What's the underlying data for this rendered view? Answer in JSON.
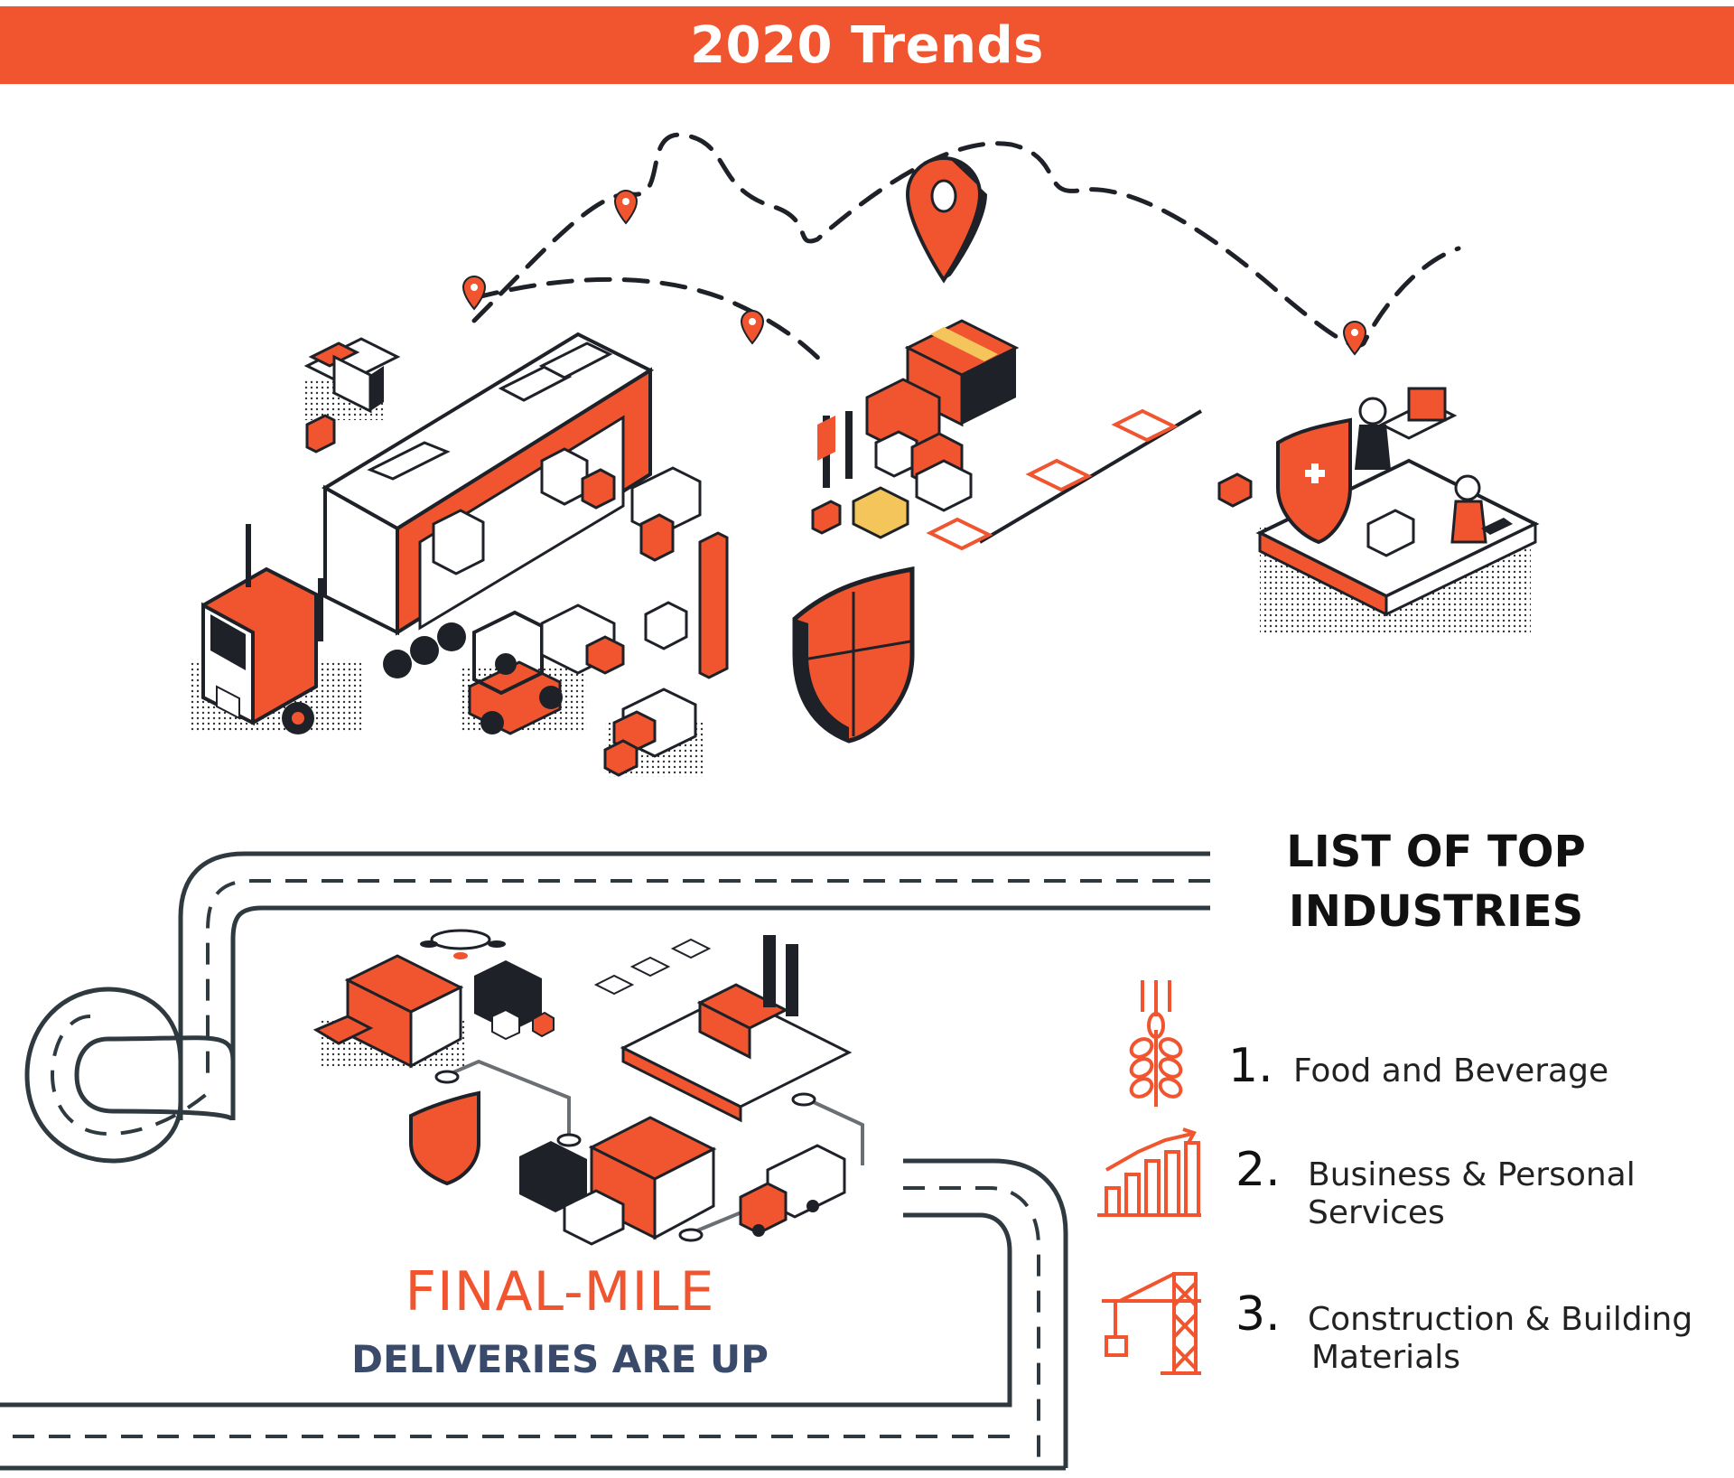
{
  "colors": {
    "accent": "#F0552F",
    "dark": "#1E2228",
    "road": "#2F3A40",
    "subtitle": "#3A4A6B",
    "dots": "#333333"
  },
  "banner": {
    "title": "2020 Trends"
  },
  "top_industries": {
    "heading_line1": "LIST OF TOP",
    "heading_line2": "INDUSTRIES",
    "items": [
      {
        "number": "1.",
        "line1": "Food and Beverage",
        "line2": "",
        "icon": "wheat-icon"
      },
      {
        "number": "2.",
        "line1": "Business & Personal",
        "line2": "Services",
        "icon": "growth-chart-icon"
      },
      {
        "number": "3.",
        "line1": "Construction & Building",
        "line2": "Materials",
        "icon": "crane-icon"
      }
    ]
  },
  "final_mile": {
    "title": "FINAL-MILE",
    "subtitle": "DELIVERIES ARE UP"
  },
  "illustration_icons": [
    "truck-icon",
    "forklift-icon",
    "location-pin-icon",
    "shield-icon",
    "storefront-icon",
    "factory-icon",
    "storage-icon",
    "drone-icon",
    "delivery-van-icon",
    "road-icon"
  ]
}
